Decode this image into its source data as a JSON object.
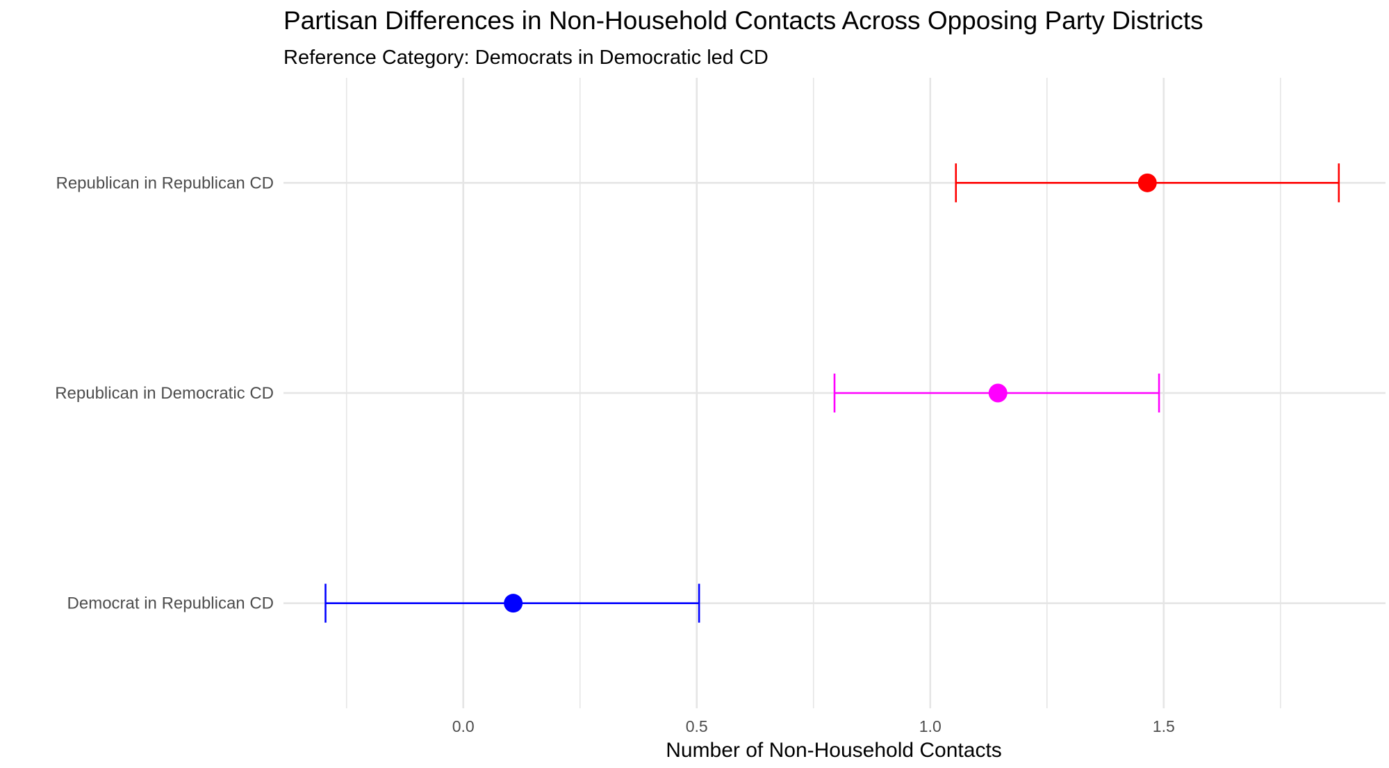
{
  "chart_data": {
    "type": "scatter",
    "title": "Partisan Differences in Non-Household Contacts Across Opposing Party Districts",
    "subtitle": "Reference Category: Democrats in Democratic led CD",
    "xlabel": "Number of Non-Household Contacts",
    "ylabel": "",
    "xlim": [
      -0.385,
      1.975
    ],
    "x_ticks": [
      0.0,
      0.5,
      1.0,
      1.5
    ],
    "x_tick_labels": [
      "0.0",
      "0.5",
      "1.0",
      "1.5"
    ],
    "x_minor_ticks": [
      -0.25,
      0.25,
      0.75,
      1.25,
      1.75
    ],
    "categories": [
      "Republican in Republican CD",
      "Republican in Democratic CD",
      "Democrat in Republican CD"
    ],
    "points": [
      {
        "category": "Republican in Republican CD",
        "estimate": 1.465,
        "lower": 1.055,
        "upper": 1.875,
        "color": "#ff0000"
      },
      {
        "category": "Republican in Democratic CD",
        "estimate": 1.145,
        "lower": 0.795,
        "upper": 1.49,
        "color": "#ff00ff"
      },
      {
        "category": "Democrat in Republican CD",
        "estimate": 0.107,
        "lower": -0.295,
        "upper": 0.505,
        "color": "#0000ff"
      }
    ],
    "grid": true,
    "legend": "none"
  }
}
